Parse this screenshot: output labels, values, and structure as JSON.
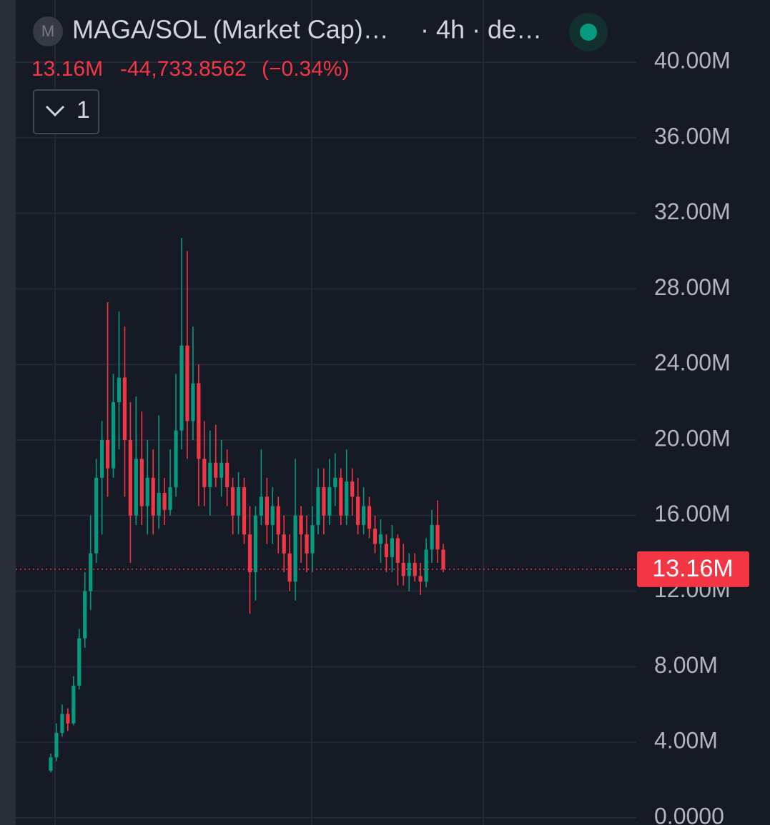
{
  "chart_data": {
    "type": "candlestick",
    "symbol_icon": "M",
    "title": "MAGA/SOL (Market Cap)…",
    "interval": "· 4h · de…",
    "indicator_count": "1",
    "last_price": {
      "value": 13160000,
      "label": "13.16M"
    },
    "change": {
      "value": -44733.8562,
      "label": "-44,733.8562"
    },
    "change_percent": {
      "value": -0.34,
      "label": "(−0.34%)"
    },
    "up_color": "#089981",
    "down_color": "#f23645",
    "ylim": [
      -380000,
      43290000
    ],
    "yticks": [
      {
        "value": 0,
        "label": "0.0000"
      },
      {
        "value": 4000000,
        "label": "4.00M"
      },
      {
        "value": 8000000,
        "label": "8.00M"
      },
      {
        "value": 12000000,
        "label": "12.00M"
      },
      {
        "value": 16000000,
        "label": "16.00M"
      },
      {
        "value": 20000000,
        "label": "20.00M"
      },
      {
        "value": 24000000,
        "label": "24.00M"
      },
      {
        "value": 28000000,
        "label": "28.00M"
      },
      {
        "value": 32000000,
        "label": "32.00M"
      },
      {
        "value": 36000000,
        "label": "36.00M"
      },
      {
        "value": 40000000,
        "label": "40.00M"
      }
    ],
    "grid": true,
    "open": [
      2500000,
      3200000,
      4500000,
      5500000,
      5000000,
      7000000,
      9500000,
      12000000,
      14000000,
      18000000,
      20000000,
      18500000,
      22000000,
      23300000,
      20000000,
      16000000,
      19000000,
      16500000,
      18000000,
      16000000,
      17200000,
      16300000,
      17500000,
      20500000,
      25000000,
      21000000,
      23000000,
      19000000,
      17500000,
      18800000,
      18000000,
      18800000,
      17500000,
      16000000,
      17500000,
      15000000,
      13000000,
      16000000,
      17000000,
      15500000,
      16500000,
      15000000,
      14000000,
      12500000,
      16000000,
      15000000,
      14000000,
      15500000,
      17500000,
      16000000,
      17500000,
      18000000,
      16000000,
      17800000,
      17000000,
      15500000,
      16500000,
      15300000,
      14500000,
      14500000,
      13800000,
      14800000,
      13500000,
      12800000,
      13500000,
      12800000,
      12500000,
      14200000,
      15500000,
      14200000
    ],
    "high": [
      3400000,
      5000000,
      6000000,
      5800000,
      7500000,
      10000000,
      13000000,
      16000000,
      19000000,
      21000000,
      27300000,
      23500000,
      26800000,
      26000000,
      22000000,
      22300000,
      21500000,
      20000000,
      19500000,
      21300000,
      18000000,
      19500000,
      23500000,
      30700000,
      30000000,
      26000000,
      24000000,
      21000000,
      20500000,
      20800000,
      20000000,
      19500000,
      18000000,
      18300000,
      18000000,
      16500000,
      16500000,
      19500000,
      18000000,
      17500000,
      17000000,
      16000000,
      15000000,
      19000000,
      16500000,
      16000000,
      16500000,
      18500000,
      18500000,
      19000000,
      19300000,
      18500000,
      19500000,
      18500000,
      18000000,
      17500000,
      17000000,
      16000000,
      15800000,
      15000000,
      15500000,
      15000000,
      14500000,
      14000000,
      14000000,
      13500000,
      14800000,
      16300000,
      16800000,
      14500000
    ],
    "low": [
      2400000,
      3000000,
      4300000,
      4600000,
      4900000,
      6800000,
      9000000,
      11000000,
      13500000,
      15000000,
      17000000,
      18000000,
      19500000,
      17000000,
      13500000,
      15500000,
      15500000,
      15000000,
      15000000,
      15300000,
      15500000,
      16000000,
      17000000,
      19500000,
      19000000,
      20000000,
      16500000,
      16500000,
      16000000,
      17500000,
      17000000,
      16500000,
      15000000,
      15000000,
      14500000,
      10800000,
      11500000,
      15500000,
      14500000,
      14500000,
      14000000,
      13000000,
      12000000,
      11500000,
      13500000,
      13000000,
      13000000,
      15000000,
      15000000,
      15500000,
      16500000,
      15500000,
      15500000,
      16000000,
      15000000,
      15000000,
      14800000,
      14000000,
      13500000,
      13000000,
      13000000,
      12300000,
      12300000,
      12000000,
      12500000,
      11800000,
      12200000,
      13500000,
      13500000,
      13000000
    ],
    "close": [
      3200000,
      4500000,
      5500000,
      5000000,
      7000000,
      9500000,
      12000000,
      14000000,
      18000000,
      20000000,
      18500000,
      22000000,
      23300000,
      20000000,
      16000000,
      19000000,
      16500000,
      18000000,
      16000000,
      17200000,
      16300000,
      17500000,
      20500000,
      25000000,
      21000000,
      23000000,
      19000000,
      17500000,
      18800000,
      18000000,
      18800000,
      17500000,
      16000000,
      17500000,
      15000000,
      13000000,
      16000000,
      17000000,
      15500000,
      16500000,
      15000000,
      14000000,
      12500000,
      16000000,
      15000000,
      14000000,
      15500000,
      17500000,
      16000000,
      17500000,
      18000000,
      16000000,
      17800000,
      17000000,
      15500000,
      16500000,
      15300000,
      14500000,
      15000000,
      13800000,
      14800000,
      13500000,
      12800000,
      13500000,
      12800000,
      12500000,
      14200000,
      15500000,
      14200000,
      13160000
    ]
  }
}
